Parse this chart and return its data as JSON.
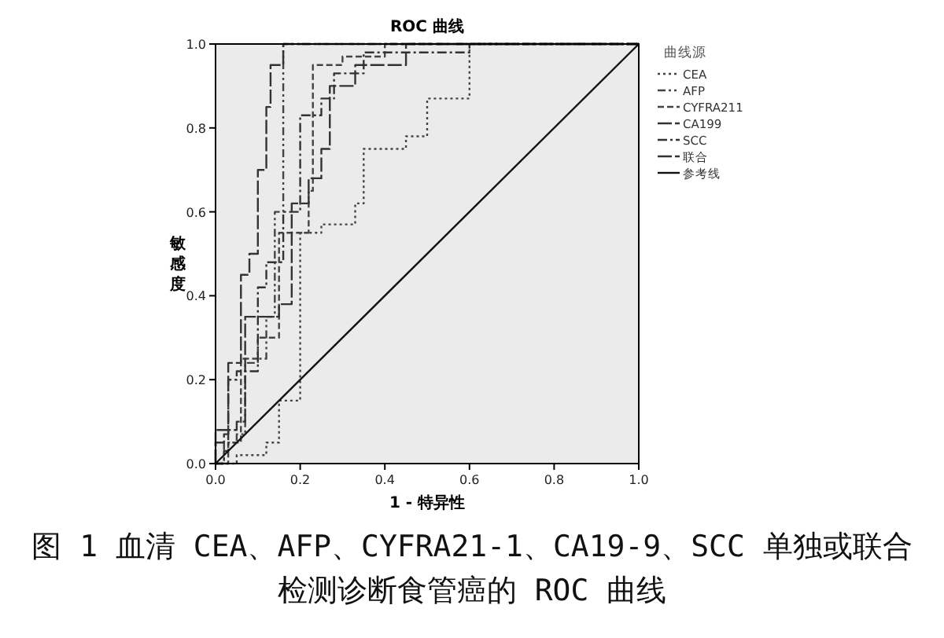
{
  "chart_data": {
    "type": "line",
    "title": "ROC 曲线",
    "xlabel": "1 - 特异性",
    "ylabel": "敏感度",
    "legend_title": "曲线源",
    "legend": "right",
    "grid": false,
    "xlim": [
      0,
      1
    ],
    "ylim": [
      0,
      1
    ],
    "xticks": [
      {
        "value": 0,
        "label": "0.0"
      },
      0.2,
      0.4,
      0.6,
      0.8,
      {
        "value": 1,
        "label": "1.0"
      }
    ],
    "yticks": [
      {
        "value": 0,
        "label": "0.0"
      },
      0.2,
      0.4,
      0.6,
      0.8,
      {
        "value": 1,
        "label": "1.0"
      }
    ],
    "series": [
      {
        "name": "CEA",
        "color": "#444444",
        "line_style": "dotted",
        "x": [
          0,
          0.05,
          0.05,
          0.12,
          0.12,
          0.15,
          0.15,
          0.2,
          0.2,
          0.25,
          0.25,
          0.33,
          0.33,
          0.35,
          0.35,
          0.45,
          0.45,
          0.5,
          0.5,
          0.6,
          0.6,
          1
        ],
        "values": [
          0,
          0,
          0.02,
          0.02,
          0.05,
          0.05,
          0.15,
          0.15,
          0.55,
          0.55,
          0.57,
          0.57,
          0.62,
          0.62,
          0.75,
          0.75,
          0.78,
          0.78,
          0.87,
          0.87,
          1,
          1
        ]
      },
      {
        "name": "AFP",
        "color": "#444444",
        "line_style": "dashdotdot",
        "x": [
          0,
          0.02,
          0.02,
          0.05,
          0.05,
          0.07,
          0.07,
          0.1,
          0.1,
          0.12,
          0.12,
          0.14,
          0.14,
          0.16,
          0.16,
          1
        ],
        "values": [
          0,
          0,
          0.05,
          0.05,
          0.07,
          0.07,
          0.24,
          0.24,
          0.25,
          0.25,
          0.35,
          0.35,
          0.6,
          0.6,
          1,
          1
        ]
      },
      {
        "name": "CYFRA211",
        "color": "#444444",
        "line_style": "dashed",
        "x": [
          0,
          0.03,
          0.03,
          0.06,
          0.06,
          0.1,
          0.1,
          0.15,
          0.15,
          0.22,
          0.22,
          0.23,
          0.23,
          0.3,
          0.3,
          0.4,
          0.4,
          1
        ],
        "values": [
          0,
          0,
          0.05,
          0.05,
          0.25,
          0.25,
          0.3,
          0.3,
          0.55,
          0.55,
          0.65,
          0.65,
          0.95,
          0.95,
          0.97,
          0.97,
          1,
          1
        ]
      },
      {
        "name": "CA199",
        "color": "#333333",
        "line_style": "longdash",
        "x": [
          0,
          0,
          0.05,
          0.05,
          0.07,
          0.07,
          0.15,
          0.15,
          0.18,
          0.18,
          0.22,
          0.22,
          0.25,
          0.25,
          0.27,
          0.27,
          0.33,
          0.33,
          0.45,
          0.45,
          1
        ],
        "values": [
          0,
          0.08,
          0.08,
          0.1,
          0.1,
          0.35,
          0.35,
          0.38,
          0.38,
          0.62,
          0.62,
          0.68,
          0.68,
          0.75,
          0.75,
          0.9,
          0.9,
          0.95,
          0.95,
          1,
          1
        ]
      },
      {
        "name": "SCC",
        "color": "#333333",
        "line_style": "dashdot",
        "x": [
          0,
          0.02,
          0.02,
          0.03,
          0.03,
          0.05,
          0.05,
          0.1,
          0.1,
          0.12,
          0.12,
          0.16,
          0.16,
          0.2,
          0.2,
          0.25,
          0.25,
          0.28,
          0.28,
          0.35,
          0.35,
          0.6,
          0.6,
          1
        ],
        "values": [
          0,
          0,
          0.03,
          0.03,
          0.2,
          0.2,
          0.22,
          0.22,
          0.42,
          0.42,
          0.48,
          0.48,
          0.6,
          0.6,
          0.83,
          0.83,
          0.87,
          0.87,
          0.93,
          0.93,
          0.98,
          0.98,
          1,
          1
        ]
      },
      {
        "name": "联合",
        "color": "#333333",
        "line_style": "longdash",
        "x": [
          0,
          0,
          0.02,
          0.02,
          0.03,
          0.03,
          0.06,
          0.06,
          0.08,
          0.08,
          0.1,
          0.1,
          0.12,
          0.12,
          0.13,
          0.13,
          0.16,
          0.16,
          1
        ],
        "values": [
          0,
          0.05,
          0.05,
          0.07,
          0.07,
          0.24,
          0.24,
          0.45,
          0.45,
          0.5,
          0.5,
          0.7,
          0.7,
          0.85,
          0.85,
          0.95,
          0.95,
          1,
          1
        ]
      },
      {
        "name": "参考线",
        "color": "#111111",
        "line_style": "solid",
        "x": [
          0,
          1
        ],
        "values": [
          0,
          1
        ]
      }
    ],
    "annotations": [
      "图 1  血清 CEA、AFP、CYFRA21-1、CA19-9、SCC 单独或联合检测诊断食管癌的 ROC 曲线"
    ]
  }
}
